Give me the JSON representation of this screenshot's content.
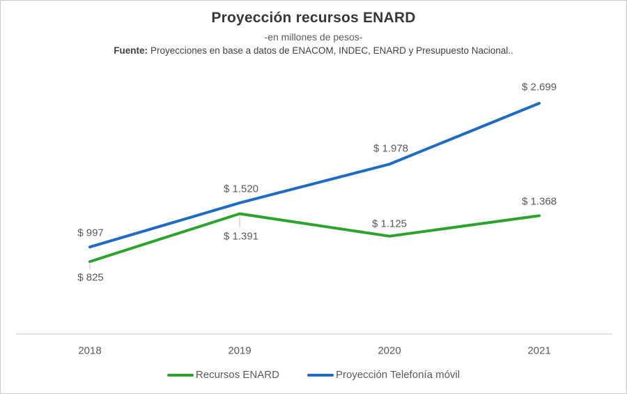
{
  "header": {
    "title": "Proyección recursos ENARD",
    "subtitle": "-en millones de pesos-",
    "source_label": "Fuente:",
    "source_text": "Proyecciones en base a datos de ENACOM, INDEC, ENARD y Presupuesto Nacional.."
  },
  "colors": {
    "green": "#2ca42c",
    "blue": "#1e6bc4",
    "axis_line": "#d9d9d9",
    "leader_tick": "#bfbfbf",
    "label_text": "#595959"
  },
  "chart_data": {
    "type": "line",
    "title": "Proyección recursos ENARD",
    "subtitle": "-en millones de pesos-",
    "source": "Fuente: Proyecciones en base a datos de ENACOM, INDEC, ENARD y Presupuesto Nacional..",
    "categories": [
      "2018",
      "2019",
      "2020",
      "2021"
    ],
    "series": [
      {
        "name": "Recursos ENARD",
        "color_key": "green",
        "values": [
          825,
          1391,
          1125,
          1368
        ],
        "labels": [
          "$ 825",
          "$ 1.391",
          "$ 1.125",
          "$ 1.368"
        ]
      },
      {
        "name": "Proyección Telefonía móvil",
        "color_key": "blue",
        "values": [
          997,
          1520,
          1978,
          2699
        ],
        "labels": [
          "$ 997",
          "$ 1.520",
          "$ 1.978",
          "$ 2.699"
        ]
      }
    ],
    "xlabel": "",
    "ylabel": "",
    "ylim": [
      0,
      3500
    ],
    "grid": false,
    "y_axis_visible": false,
    "legend_position": "bottom"
  },
  "legend": {
    "items": [
      {
        "label": "Recursos ENARD",
        "color_key": "green"
      },
      {
        "label": "Proyección Telefonía móvil",
        "color_key": "blue"
      }
    ]
  }
}
